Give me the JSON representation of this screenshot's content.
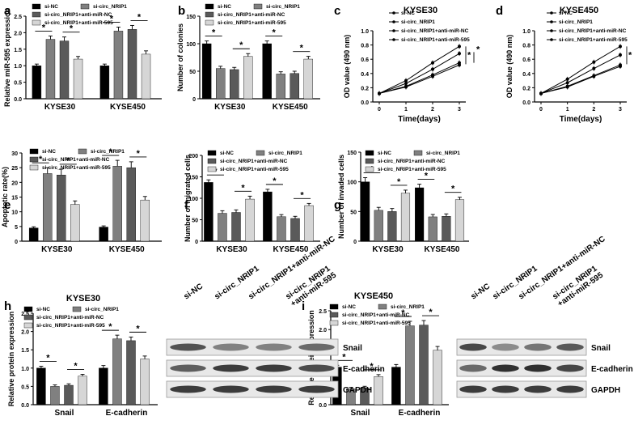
{
  "colors": {
    "g1": "#000000",
    "g2": "#808080",
    "g3": "#5a5a5a",
    "g4": "#d6d6d6"
  },
  "chart_data": [
    {
      "id": "a",
      "panel_label": "a",
      "type": "bar",
      "ylabel": "Relative miR-595 expression",
      "legend": [
        "si-NC",
        "si-circ_NRIP1",
        "si-circ_NRIP1+anti-miR-NC",
        "si-circ_NRIP1+anti-miR-595"
      ],
      "categories": [
        "KYSE30",
        "KYSE450"
      ],
      "series": [
        {
          "name": "si-NC",
          "values": [
            1.0,
            1.0
          ]
        },
        {
          "name": "si-circ_NRIP1",
          "values": [
            1.8,
            2.05
          ]
        },
        {
          "name": "si-circ_NRIP1+anti-miR-NC",
          "values": [
            1.75,
            2.1
          ]
        },
        {
          "name": "si-circ_NRIP1+anti-miR-595",
          "values": [
            1.2,
            1.35
          ]
        }
      ],
      "errors": [
        [
          0.05,
          0.05
        ],
        [
          0.1,
          0.12
        ],
        [
          0.12,
          0.12
        ],
        [
          0.08,
          0.1
        ]
      ],
      "ylim": [
        0,
        2.5
      ],
      "yticks": [
        "0.0",
        "0.5",
        "1.0",
        "1.5",
        "2.0",
        "2.5"
      ],
      "sig": [
        "*",
        "*",
        "*",
        "*"
      ]
    },
    {
      "id": "b",
      "panel_label": "b",
      "type": "bar",
      "ylabel": "Number of colonies",
      "legend": [
        "si-NC",
        "si-circ_NRIP1",
        "si-circ_NRIP1+anti-miR-NC",
        "si-circ_NRIP1+anti-miR-595"
      ],
      "categories": [
        "KYSE30",
        "KYSE450"
      ],
      "series": [
        {
          "name": "si-NC",
          "values": [
            100,
            100
          ]
        },
        {
          "name": "si-circ_NRIP1",
          "values": [
            55,
            45
          ]
        },
        {
          "name": "si-circ_NRIP1+anti-miR-NC",
          "values": [
            53,
            46
          ]
        },
        {
          "name": "si-circ_NRIP1+anti-miR-595",
          "values": [
            77,
            72
          ]
        }
      ],
      "errors": [
        [
          5,
          5
        ],
        [
          4,
          4
        ],
        [
          4,
          4
        ],
        [
          5,
          5
        ]
      ],
      "ylim": [
        0,
        150
      ],
      "yticks": [
        "0",
        "50",
        "100",
        "150"
      ],
      "sig": [
        "*",
        "*",
        "*",
        "*"
      ]
    },
    {
      "id": "c",
      "panel_label": "c",
      "type": "line",
      "title": "KYSE30",
      "xlabel": "Time(days)",
      "ylabel": "OD value (490 nm)",
      "legend": [
        "si-NC",
        "si-circ_NRIP1",
        "si-circ_NRIP1+anti-miR-NC",
        "si-circ_NRIP1+anti-miR-595"
      ],
      "x": [
        0,
        1,
        2,
        3
      ],
      "series": [
        {
          "name": "si-NC",
          "values": [
            0.12,
            0.3,
            0.55,
            0.78
          ]
        },
        {
          "name": "si-circ_NRIP1",
          "values": [
            0.12,
            0.22,
            0.38,
            0.55
          ]
        },
        {
          "name": "si-circ_NRIP1+anti-miR-NC",
          "values": [
            0.12,
            0.21,
            0.36,
            0.52
          ]
        },
        {
          "name": "si-circ_NRIP1+anti-miR-595",
          "values": [
            0.12,
            0.26,
            0.46,
            0.68
          ]
        }
      ],
      "xlim": [
        0,
        3
      ],
      "ylim": [
        0,
        1.0
      ],
      "xticks": [
        "0",
        "1",
        "2",
        "3"
      ],
      "yticks": [
        "0.0",
        "0.2",
        "0.4",
        "0.6",
        "0.8",
        "1.0"
      ],
      "sig": [
        "*",
        "*"
      ]
    },
    {
      "id": "d",
      "panel_label": "d",
      "type": "line",
      "title": "KYSE450",
      "xlabel": "Time(days)",
      "ylabel": "OD value (490 nm)",
      "legend": [
        "si-NC",
        "si-circ_NRIP1",
        "si-circ_NRIP1+anti-miR-NC",
        "si-circ_NRIP1+anti-miR-595"
      ],
      "x": [
        0,
        1,
        2,
        3
      ],
      "series": [
        {
          "name": "si-NC",
          "values": [
            0.12,
            0.32,
            0.56,
            0.78
          ]
        },
        {
          "name": "si-circ_NRIP1",
          "values": [
            0.12,
            0.22,
            0.37,
            0.52
          ]
        },
        {
          "name": "si-circ_NRIP1+anti-miR-NC",
          "values": [
            0.12,
            0.21,
            0.36,
            0.5
          ]
        },
        {
          "name": "si-circ_NRIP1+anti-miR-595",
          "values": [
            0.12,
            0.27,
            0.47,
            0.66
          ]
        }
      ],
      "xlim": [
        0,
        3
      ],
      "ylim": [
        0,
        1.0
      ],
      "xticks": [
        "0",
        "1",
        "2",
        "3"
      ],
      "yticks": [
        "0.0",
        "0.2",
        "0.4",
        "0.6",
        "0.8",
        "1.0"
      ],
      "sig": [
        "*",
        "*"
      ]
    },
    {
      "id": "e",
      "panel_label": "e",
      "type": "bar",
      "ylabel": "Apoptotic rate(%)",
      "legend": [
        "si-NC",
        "si-circ_NRIP1",
        "si-circ_NRIP1+anti-miR-NC",
        "si-circ_NRIP1+anti-miR-595"
      ],
      "categories": [
        "KYSE30",
        "KYSE450"
      ],
      "series": [
        {
          "name": "si-NC",
          "values": [
            4.5,
            4.8
          ]
        },
        {
          "name": "si-circ_NRIP1",
          "values": [
            23,
            25.5
          ]
        },
        {
          "name": "si-circ_NRIP1+anti-miR-NC",
          "values": [
            22.5,
            25
          ]
        },
        {
          "name": "si-circ_NRIP1+anti-miR-595",
          "values": [
            12.5,
            14
          ]
        }
      ],
      "errors": [
        [
          0.4,
          0.4
        ],
        [
          2,
          2
        ],
        [
          2,
          2
        ],
        [
          1.2,
          1.2
        ]
      ],
      "ylim": [
        0,
        30
      ],
      "yticks": [
        "0",
        "5",
        "10",
        "15",
        "20",
        "25",
        "30"
      ],
      "sig": [
        "*",
        "*",
        "*",
        "*"
      ]
    },
    {
      "id": "f",
      "panel_label": "f",
      "type": "bar",
      "ylabel": "Number of migrated cells",
      "legend": [
        "si-NC",
        "si-circ_NRIP1",
        "si-circ_NRIP1+anti-miR-NC",
        "si-circ_NRIP1+anti-miR-595"
      ],
      "categories": [
        "KYSE30",
        "KYSE450"
      ],
      "series": [
        {
          "name": "si-NC",
          "values": [
            137,
            115
          ]
        },
        {
          "name": "si-circ_NRIP1",
          "values": [
            65,
            57
          ]
        },
        {
          "name": "si-circ_NRIP1+anti-miR-NC",
          "values": [
            67,
            53
          ]
        },
        {
          "name": "si-circ_NRIP1+anti-miR-595",
          "values": [
            98,
            83
          ]
        }
      ],
      "errors": [
        [
          6,
          6
        ],
        [
          6,
          5
        ],
        [
          6,
          5
        ],
        [
          7,
          5
        ]
      ],
      "ylim": [
        0,
        200
      ],
      "yticks": [
        "0",
        "50",
        "100",
        "150",
        "200"
      ],
      "sig": [
        "*",
        "*",
        "*",
        "*"
      ]
    },
    {
      "id": "g",
      "panel_label": "g",
      "type": "bar",
      "ylabel": "Number of invaded cells",
      "legend": [
        "si-NC",
        "si-circ_NRIP1",
        "si-circ_NRIP1+anti-miR-NC",
        "si-circ_NRIP1+anti-miR-595"
      ],
      "categories": [
        "KYSE30",
        "KYSE450"
      ],
      "series": [
        {
          "name": "si-NC",
          "values": [
            100,
            90
          ]
        },
        {
          "name": "si-circ_NRIP1",
          "values": [
            52,
            41
          ]
        },
        {
          "name": "si-circ_NRIP1+anti-miR-NC",
          "values": [
            50,
            42
          ]
        },
        {
          "name": "si-circ_NRIP1+anti-miR-595",
          "values": [
            81,
            70
          ]
        }
      ],
      "errors": [
        [
          7,
          6
        ],
        [
          5,
          4
        ],
        [
          5,
          4
        ],
        [
          5,
          4
        ]
      ],
      "ylim": [
        0,
        150
      ],
      "yticks": [
        "0",
        "50",
        "100",
        "150"
      ],
      "sig": [
        "*",
        "*",
        "*",
        "*"
      ]
    },
    {
      "id": "h",
      "panel_label": "h",
      "type": "bar",
      "title": "KYSE30",
      "ylabel": "Relative protein expression",
      "legend": [
        "si-NC",
        "si-circ_NRIP1",
        "si-circ_NRIP1+anti-miR-NC",
        "si-circ_NRIP1+anti-miR-595"
      ],
      "categories": [
        "Snail",
        "E-cadherin"
      ],
      "series": [
        {
          "name": "si-NC",
          "values": [
            1.0,
            1.0
          ]
        },
        {
          "name": "si-circ_NRIP1",
          "values": [
            0.5,
            1.8
          ]
        },
        {
          "name": "si-circ_NRIP1+anti-miR-NC",
          "values": [
            0.53,
            1.75
          ]
        },
        {
          "name": "si-circ_NRIP1+anti-miR-595",
          "values": [
            0.78,
            1.25
          ]
        }
      ],
      "errors": [
        [
          0.05,
          0.07
        ],
        [
          0.04,
          0.1
        ],
        [
          0.04,
          0.1
        ],
        [
          0.05,
          0.08
        ]
      ],
      "ylim": [
        0,
        2.5
      ],
      "yticks": [
        "0.0",
        "0.5",
        "1.0",
        "1.5",
        "2.0",
        "2.5"
      ],
      "sig": [
        "*",
        "*",
        "*",
        "*"
      ]
    },
    {
      "id": "i",
      "panel_label": "i",
      "type": "bar",
      "title": "KYSE450",
      "ylabel": "Relative protein expression",
      "legend": [
        "si-NC",
        "si-circ_NRIP1",
        "si-circ_NRIP1+anti-miR-NC",
        "si-circ_NRIP1+anti-miR-595"
      ],
      "categories": [
        "Snail",
        "E-cadherin"
      ],
      "series": [
        {
          "name": "si-NC",
          "values": [
            1.0,
            1.0
          ]
        },
        {
          "name": "si-circ_NRIP1",
          "values": [
            0.42,
            2.1
          ]
        },
        {
          "name": "si-circ_NRIP1+anti-miR-NC",
          "values": [
            0.45,
            2.12
          ]
        },
        {
          "name": "si-circ_NRIP1+anti-miR-595",
          "values": [
            0.75,
            1.45
          ]
        }
      ],
      "errors": [
        [
          0.05,
          0.07
        ],
        [
          0.04,
          0.12
        ],
        [
          0.04,
          0.12
        ],
        [
          0.05,
          0.1
        ]
      ],
      "ylim": [
        0,
        2.5
      ],
      "yticks": [
        "0.0",
        "0.5",
        "1.0",
        "1.5",
        "2.0",
        "2.5"
      ],
      "sig": [
        "*",
        "*",
        "*",
        "*"
      ]
    }
  ],
  "blots": [
    {
      "id": "h",
      "lanes": [
        "si-NC",
        "si-circ_NRIP1",
        "si-circ_NRIP1+anti-miR-NC",
        "si-circ_NRIP1\n+anti-miR-595"
      ],
      "rows": [
        {
          "label": "Snail",
          "intensity": [
            0.75,
            0.55,
            0.55,
            0.65
          ]
        },
        {
          "label": "E-cadherin",
          "intensity": [
            0.7,
            0.85,
            0.85,
            0.78
          ]
        },
        {
          "label": "GAPDH",
          "intensity": [
            0.85,
            0.85,
            0.85,
            0.85
          ]
        }
      ]
    },
    {
      "id": "i",
      "lanes": [
        "si-NC",
        "si-circ_NRIP1",
        "si-circ_NRIP1+anti-miR-NC",
        "si-circ_NRIP1\n+anti-miR-595"
      ],
      "rows": [
        {
          "label": "Snail",
          "intensity": [
            0.8,
            0.5,
            0.6,
            0.72
          ]
        },
        {
          "label": "E-cadherin",
          "intensity": [
            0.65,
            0.9,
            0.9,
            0.8
          ]
        },
        {
          "label": "GAPDH",
          "intensity": [
            0.85,
            0.85,
            0.85,
            0.85
          ]
        }
      ]
    }
  ]
}
